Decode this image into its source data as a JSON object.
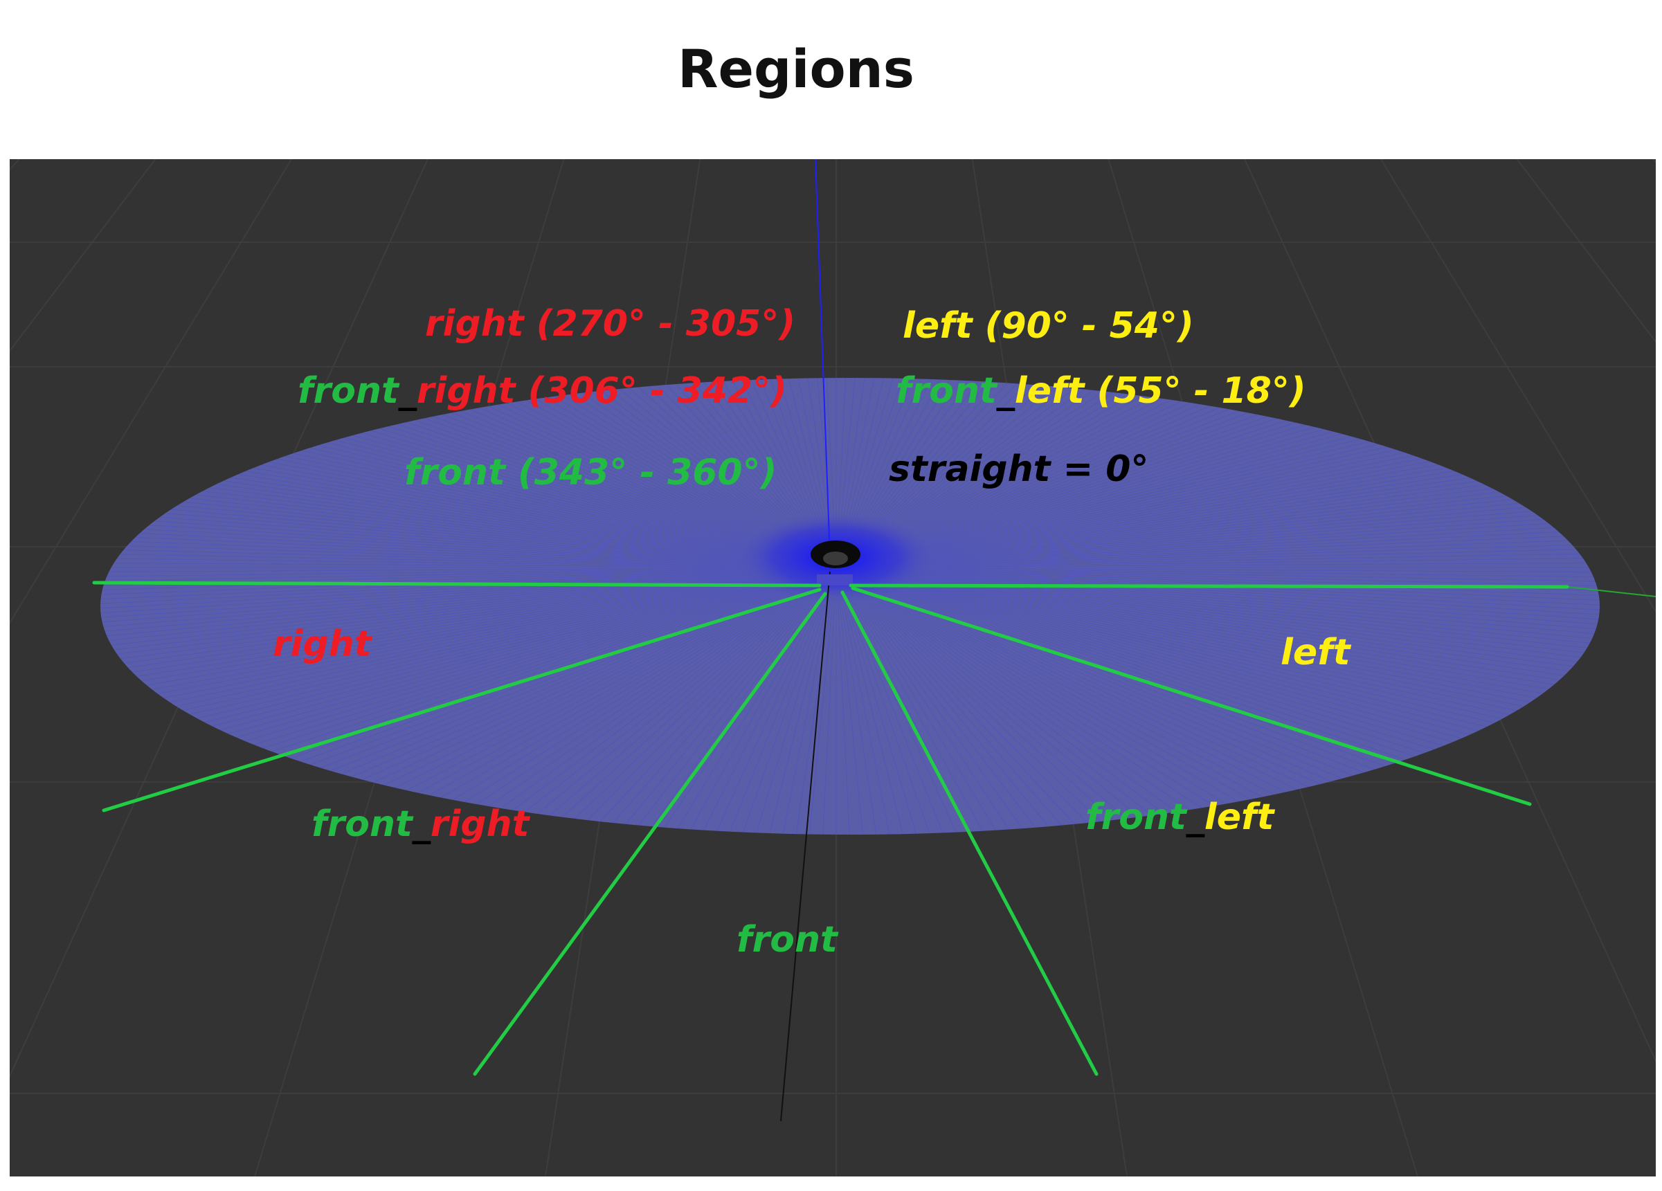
{
  "title": "Regions",
  "colors": {
    "background": "#333333",
    "disc": "#5a5ea8",
    "boundary": "#22cc44",
    "red": "#ee1c24",
    "yellow": "#ffee11",
    "green": "#22bb44",
    "black": "#000000"
  },
  "legend": {
    "right_range": {
      "name": "right",
      "range": " (270° - 305°)"
    },
    "left_range": {
      "name": "left",
      "range": " (90° - 54°)"
    },
    "front_right_range": {
      "front": "front",
      "sep": "_",
      "right": "right",
      "range": " (306° - 342°)"
    },
    "front_left_range": {
      "front": "front",
      "sep": "_",
      "left": "left",
      "range": " (55° - 18°)"
    },
    "front_range": {
      "text": "front (343° - 360°)"
    },
    "straight": {
      "text": "straight = 0°"
    }
  },
  "regions": {
    "right": "right",
    "left": "left",
    "front_right": {
      "front": "front",
      "sep": "_",
      "right": "right"
    },
    "front_left": {
      "front": "front",
      "sep": "_",
      "left": "left"
    },
    "front": "front"
  }
}
